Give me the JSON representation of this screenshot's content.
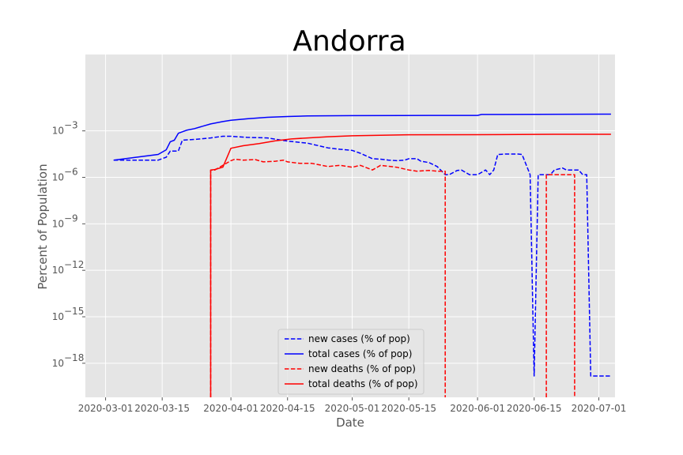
{
  "chart_data": {
    "type": "line",
    "title": "Andorra",
    "xlabel": "Date",
    "ylabel": "Percent of Population",
    "yscale": "log",
    "grid": true,
    "legend_position": "lower-center",
    "xlim": [
      "2020-02-25",
      "2020-07-05"
    ],
    "ylim_exponent": [
      -20.2,
      1.93
    ],
    "x_ticks": [
      "2020-03-01",
      "2020-03-15",
      "2020-04-01",
      "2020-04-15",
      "2020-05-01",
      "2020-05-15",
      "2020-06-01",
      "2020-06-15",
      "2020-07-01"
    ],
    "y_ticks": [
      {
        "exp": -3,
        "base": "10",
        "sup": "−3"
      },
      {
        "exp": -6,
        "base": "10",
        "sup": "−6"
      },
      {
        "exp": -9,
        "base": "10",
        "sup": "−9"
      },
      {
        "exp": -12,
        "base": "10",
        "sup": "−12"
      },
      {
        "exp": -15,
        "base": "10",
        "sup": "−15"
      },
      {
        "exp": -18,
        "base": "10",
        "sup": "−18"
      }
    ],
    "series": [
      {
        "name": "new cases (% of pop)",
        "color": "#0000ff",
        "dash": true,
        "points": [
          [
            "2020-03-03",
            1.3e-05
          ],
          [
            "2020-03-14",
            1.3e-05
          ],
          [
            "2020-03-16",
            2e-05
          ],
          [
            "2020-03-17",
            5e-05
          ],
          [
            "2020-03-19",
            5e-05
          ],
          [
            "2020-03-20",
            0.00025
          ],
          [
            "2020-03-23",
            0.00028
          ],
          [
            "2020-03-27",
            0.00035
          ],
          [
            "2020-03-30",
            0.00045
          ],
          [
            "2020-04-01",
            0.00045
          ],
          [
            "2020-04-05",
            0.00038
          ],
          [
            "2020-04-10",
            0.00035
          ],
          [
            "2020-04-15",
            0.00022
          ],
          [
            "2020-04-20",
            0.00016
          ],
          [
            "2020-04-25",
            8e-05
          ],
          [
            "2020-04-28",
            6.5e-05
          ],
          [
            "2020-05-01",
            5.5e-05
          ],
          [
            "2020-05-03",
            3.6e-05
          ],
          [
            "2020-05-06",
            1.6e-05
          ],
          [
            "2020-05-08",
            1.5e-05
          ],
          [
            "2020-05-10",
            1.3e-05
          ],
          [
            "2020-05-12",
            1.2e-05
          ],
          [
            "2020-05-14",
            1.3e-05
          ],
          [
            "2020-05-15",
            1.6e-05
          ],
          [
            "2020-05-17",
            1.6e-05
          ],
          [
            "2020-05-18",
            1.1e-05
          ],
          [
            "2020-05-20",
            9e-06
          ],
          [
            "2020-05-22",
            5e-06
          ],
          [
            "2020-05-24",
            1.5e-06
          ],
          [
            "2020-05-25",
            1.5e-06
          ],
          [
            "2020-05-27",
            2.8e-06
          ],
          [
            "2020-05-28",
            3e-06
          ],
          [
            "2020-05-30",
            1.5e-06
          ],
          [
            "2020-06-01",
            1.5e-06
          ],
          [
            "2020-06-03",
            3e-06
          ],
          [
            "2020-06-04",
            1.5e-06
          ],
          [
            "2020-06-05",
            3e-06
          ],
          [
            "2020-06-06",
            3e-05
          ],
          [
            "2020-06-08",
            3.2e-05
          ],
          [
            "2020-06-11",
            3.2e-05
          ],
          [
            "2020-06-12",
            3e-05
          ],
          [
            "2020-06-14",
            1.5e-06
          ],
          [
            "2020-06-15",
            1.5e-19
          ],
          [
            "2020-06-16",
            1.5e-06
          ],
          [
            "2020-06-19",
            1.5e-06
          ],
          [
            "2020-06-20",
            3e-06
          ],
          [
            "2020-06-22",
            4e-06
          ],
          [
            "2020-06-23",
            3e-06
          ],
          [
            "2020-06-26",
            3e-06
          ],
          [
            "2020-06-27",
            1.5e-06
          ],
          [
            "2020-06-28",
            1.5e-06
          ],
          [
            "2020-06-29",
            1.5e-19
          ],
          [
            "2020-07-04",
            1.5e-19
          ]
        ]
      },
      {
        "name": "total cases (% of pop)",
        "color": "#0000ff",
        "dash": false,
        "points": [
          [
            "2020-03-03",
            1.3e-05
          ],
          [
            "2020-03-14",
            3e-05
          ],
          [
            "2020-03-16",
            6e-05
          ],
          [
            "2020-03-17",
            0.0002
          ],
          [
            "2020-03-18",
            0.00025
          ],
          [
            "2020-03-19",
            0.0007
          ],
          [
            "2020-03-21",
            0.0011
          ],
          [
            "2020-03-23",
            0.0014
          ],
          [
            "2020-03-25",
            0.002
          ],
          [
            "2020-03-27",
            0.0028
          ],
          [
            "2020-03-30",
            0.004
          ],
          [
            "2020-04-01",
            0.0048
          ],
          [
            "2020-04-05",
            0.006
          ],
          [
            "2020-04-10",
            0.0075
          ],
          [
            "2020-04-15",
            0.0085
          ],
          [
            "2020-04-20",
            0.0092
          ],
          [
            "2020-05-01",
            0.0096
          ],
          [
            "2020-05-20",
            0.01
          ],
          [
            "2020-06-01",
            0.01
          ],
          [
            "2020-06-02",
            0.0115
          ],
          [
            "2020-07-04",
            0.012
          ]
        ]
      },
      {
        "name": "new deaths (% of pop)",
        "color": "#ff0000",
        "dash": true,
        "points": [
          [
            "2020-03-27",
            1e-30
          ],
          [
            "2020-03-27",
            3e-06
          ],
          [
            "2020-03-28",
            3e-06
          ],
          [
            "2020-03-30",
            6e-06
          ],
          [
            "2020-04-01",
            1.2e-05
          ],
          [
            "2020-04-02",
            1.5e-05
          ],
          [
            "2020-04-04",
            1.3e-05
          ],
          [
            "2020-04-07",
            1.4e-05
          ],
          [
            "2020-04-09",
            1e-05
          ],
          [
            "2020-04-12",
            1.1e-05
          ],
          [
            "2020-04-14",
            1.3e-05
          ],
          [
            "2020-04-15",
            1e-05
          ],
          [
            "2020-04-18",
            8e-06
          ],
          [
            "2020-04-21",
            8e-06
          ],
          [
            "2020-04-25",
            5e-06
          ],
          [
            "2020-04-28",
            6e-06
          ],
          [
            "2020-05-01",
            4.5e-06
          ],
          [
            "2020-05-03",
            6e-06
          ],
          [
            "2020-05-06",
            3e-06
          ],
          [
            "2020-05-08",
            6e-06
          ],
          [
            "2020-05-12",
            4.5e-06
          ],
          [
            "2020-05-15",
            3e-06
          ],
          [
            "2020-05-17",
            2.5e-06
          ],
          [
            "2020-05-20",
            2.8e-06
          ],
          [
            "2020-05-22",
            2.5e-06
          ],
          [
            "2020-05-24",
            2.5e-06
          ],
          [
            "2020-05-24",
            1e-30
          ]
        ]
      },
      {
        "name": "new deaths (% of pop)",
        "color": "#ff0000",
        "dash": true,
        "points": [
          [
            "2020-06-18",
            1e-30
          ],
          [
            "2020-06-18",
            1.5e-06
          ],
          [
            "2020-06-25",
            1.5e-06
          ],
          [
            "2020-06-25",
            1e-30
          ]
        ]
      },
      {
        "name": "total deaths (% of pop)",
        "color": "#ff0000",
        "dash": false,
        "points": [
          [
            "2020-03-27",
            1e-30
          ],
          [
            "2020-03-27",
            3e-06
          ],
          [
            "2020-03-28",
            3.2e-06
          ],
          [
            "2020-03-30",
            4.5e-06
          ],
          [
            "2020-04-01",
            7.5e-05
          ],
          [
            "2020-04-04",
            0.00011
          ],
          [
            "2020-04-08",
            0.00015
          ],
          [
            "2020-04-12",
            0.00023
          ],
          [
            "2020-04-16",
            0.0003
          ],
          [
            "2020-04-20",
            0.00035
          ],
          [
            "2020-04-25",
            0.00042
          ],
          [
            "2020-05-01",
            0.00048
          ],
          [
            "2020-05-15",
            0.00056
          ],
          [
            "2020-06-01",
            0.00057
          ],
          [
            "2020-06-20",
            0.0006
          ],
          [
            "2020-07-04",
            0.0006
          ]
        ]
      }
    ],
    "legend": [
      {
        "label": "new cases (% of pop)",
        "color": "#0000ff",
        "dash": true
      },
      {
        "label": "total cases (% of pop)",
        "color": "#0000ff",
        "dash": false
      },
      {
        "label": "new deaths (% of pop)",
        "color": "#ff0000",
        "dash": true
      },
      {
        "label": "total deaths (% of pop)",
        "color": "#ff0000",
        "dash": false
      }
    ]
  }
}
